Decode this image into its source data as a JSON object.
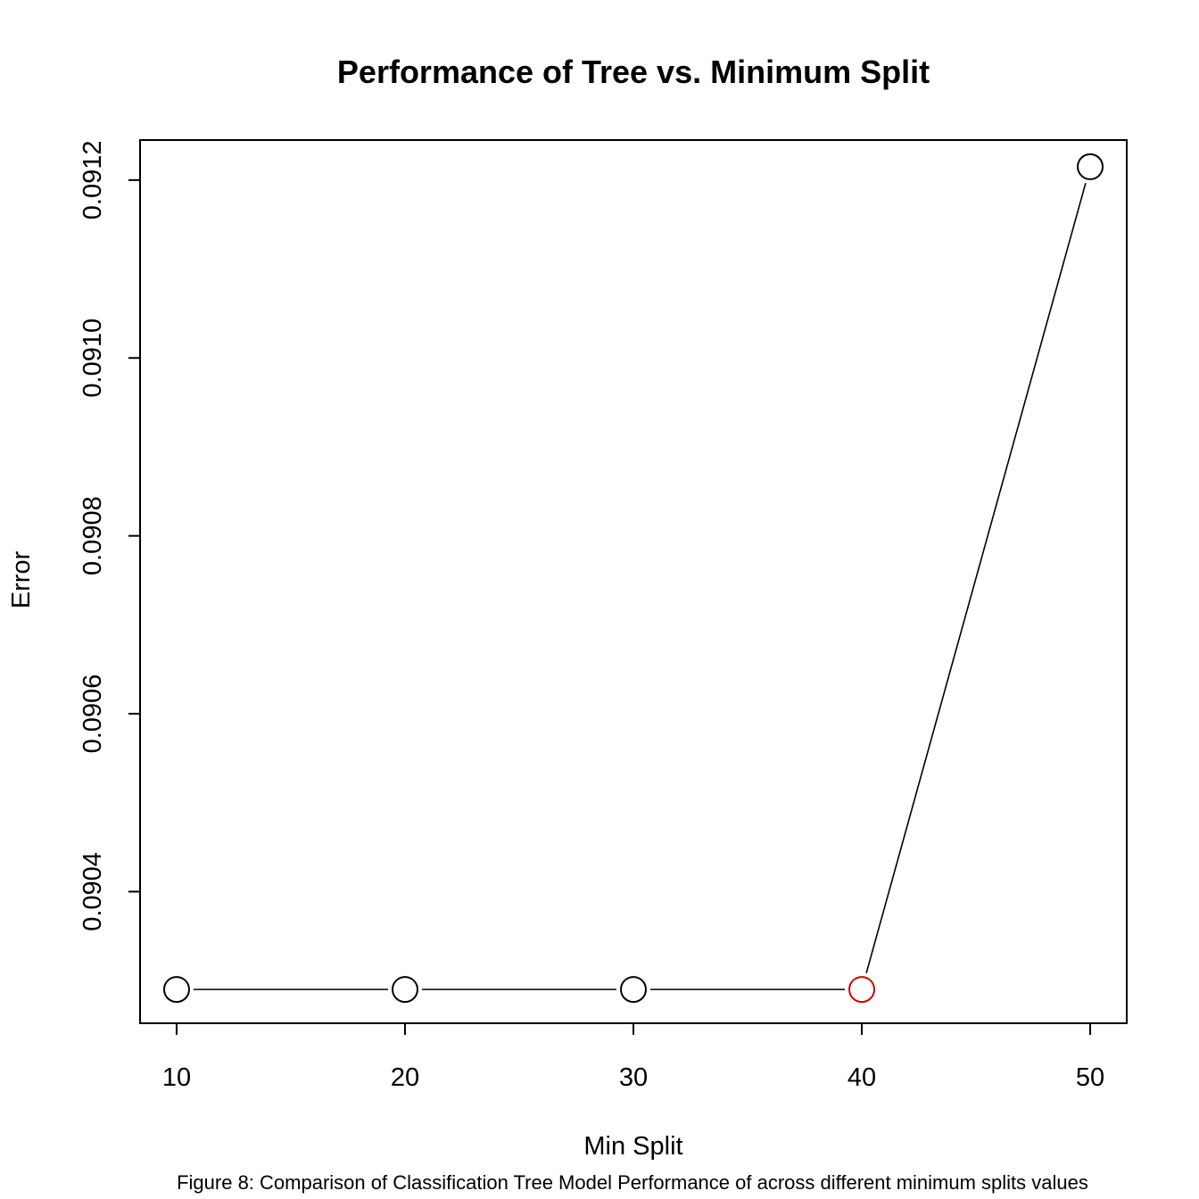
{
  "chart_data": {
    "type": "line",
    "title": "Performance of Tree vs. Minimum Split",
    "xlabel": "Min Split",
    "ylabel": "Error",
    "x": [
      10,
      20,
      30,
      40,
      50
    ],
    "series": [
      {
        "values": [
          0.09029,
          0.09029,
          0.09029,
          0.09029,
          0.091215
        ]
      }
    ],
    "highlight": {
      "x": 40,
      "color": "#cc0000"
    },
    "point_color": "#000000",
    "line_color": "#000000",
    "x_ticks": [
      10,
      20,
      30,
      40,
      50
    ],
    "y_ticks": [
      "0.0904",
      "0.0906",
      "0.0908",
      "0.0910",
      "0.0912"
    ],
    "y_tick_values": [
      0.0904,
      0.0906,
      0.0908,
      0.091,
      0.0912
    ],
    "xlim": [
      8.4,
      51.6
    ],
    "ylim": [
      0.090252,
      0.091245
    ],
    "grid": false,
    "legend": "none"
  },
  "caption": "Figure 8: Comparison of Classification Tree Model Performance of across different minimum splits values"
}
